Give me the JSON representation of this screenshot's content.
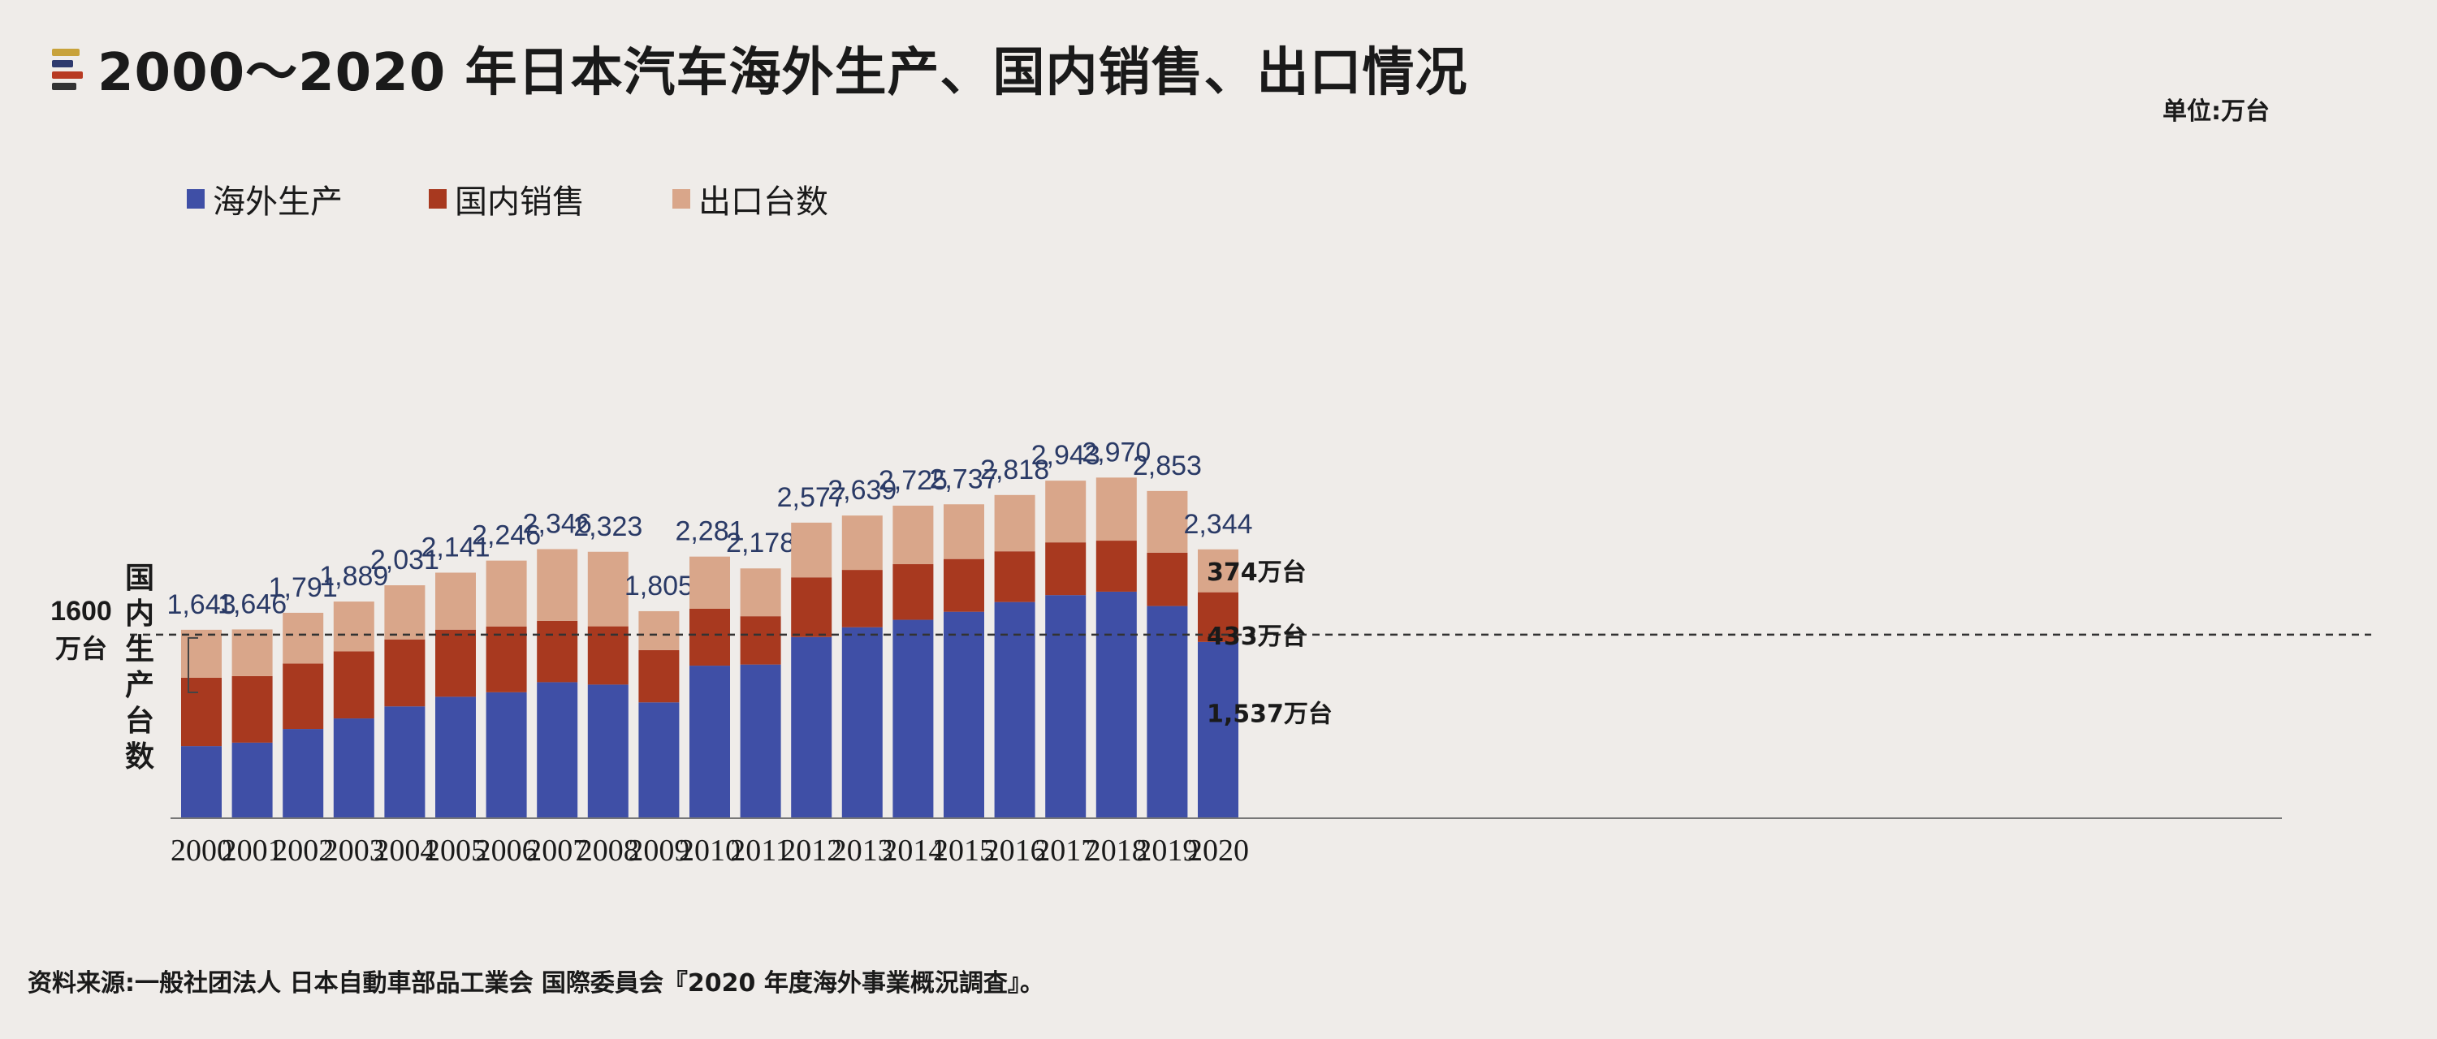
{
  "title": "2000～2020 年日本汽车海外生产、国内销售、出口情况",
  "unit": "单位:万台",
  "source": "资料来源:一般社团法人 日本自動車部品工業会 国際委員会『2020 年度海外事業概況調査』。",
  "colors": {
    "overseas": "#3f4fa6",
    "domestic": "#a8391f",
    "export": "#d9a68a"
  },
  "chart_data": {
    "type": "bar",
    "stacked": true,
    "title": "2000～2020 年日本汽车海外生产、国内销售、出口情况",
    "ylabel": "国内生产台数",
    "unit": "万台",
    "categories": [
      "2000",
      "2001",
      "2002",
      "2003",
      "2004",
      "2005",
      "2006",
      "2007",
      "2008",
      "2009",
      "2010",
      "2011",
      "2012",
      "2013",
      "2014",
      "2015",
      "2016",
      "2017",
      "2018",
      "2019",
      "2020"
    ],
    "totals": [
      1643,
      1646,
      1791,
      1889,
      2031,
      2141,
      2246,
      2346,
      2323,
      1805,
      2281,
      2178,
      2577,
      2639,
      2725,
      2737,
      2818,
      2943,
      2970,
      2853,
      2344
    ],
    "total_labels": [
      "1,643",
      "1,646",
      "1,791",
      "1,889",
      "2,031",
      "2,141",
      "2,246",
      "2,346",
      "2,323",
      "1,805",
      "2,281",
      "2,178",
      "2,577",
      "2,639",
      "2,725",
      "2,737",
      "2,818",
      "2,943",
      "2,970",
      "2,853",
      "2,344"
    ],
    "series": [
      {
        "name": "海外生产",
        "values": [
          629,
          659,
          778,
          870,
          975,
          1059,
          1098,
          1186,
          1165,
          1010,
          1330,
          1340,
          1580,
          1665,
          1730,
          1800,
          1885,
          1945,
          1975,
          1850,
          1537
        ]
      },
      {
        "name": "国内销售",
        "values": [
          596,
          580,
          570,
          585,
          584,
          585,
          574,
          535,
          508,
          456,
          496,
          421,
          520,
          500,
          485,
          460,
          442,
          460,
          445,
          465,
          433
        ]
      },
      {
        "name": "出口台数",
        "values": [
          418,
          407,
          443,
          434,
          472,
          497,
          574,
          625,
          650,
          339,
          455,
          417,
          477,
          474,
          510,
          477,
          491,
          538,
          550,
          538,
          374
        ]
      }
    ],
    "reference_line": {
      "value": 1600,
      "label_line1": "1600",
      "label_line2": "万台"
    },
    "annotations_2020": {
      "overseas": "1,537万台",
      "domestic": "433万台",
      "export": "374万台"
    },
    "ylim": [
      0,
      3000
    ],
    "legend_position": "top-left"
  }
}
